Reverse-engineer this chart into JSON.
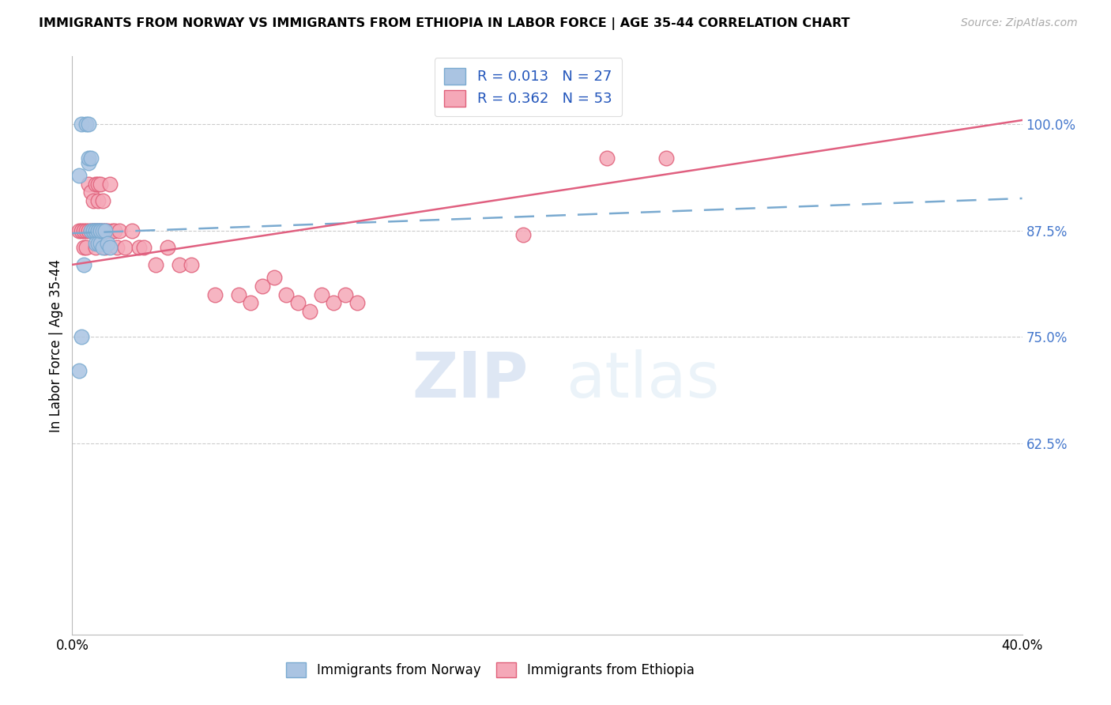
{
  "title": "IMMIGRANTS FROM NORWAY VS IMMIGRANTS FROM ETHIOPIA IN LABOR FORCE | AGE 35-44 CORRELATION CHART",
  "source": "Source: ZipAtlas.com",
  "ylabel": "In Labor Force | Age 35-44",
  "xlim": [
    0.0,
    0.4
  ],
  "ylim": [
    0.4,
    1.08
  ],
  "norway_color": "#aac4e2",
  "norway_edge_color": "#7aaad0",
  "ethiopia_color": "#f5a8b8",
  "ethiopia_edge_color": "#e0607a",
  "norway_R": "0.013",
  "norway_N": "27",
  "ethiopia_R": "0.362",
  "ethiopia_N": "53",
  "norway_line_color": "#7aaad0",
  "ethiopia_line_color": "#e06080",
  "watermark_zip": "ZIP",
  "watermark_atlas": "atlas",
  "norway_trend_x0": 0.0,
  "norway_trend_y0": 0.872,
  "norway_trend_x1": 0.4,
  "norway_trend_y1": 0.913,
  "ethiopia_trend_x0": 0.0,
  "ethiopia_trend_y0": 0.835,
  "ethiopia_trend_x1": 0.4,
  "ethiopia_trend_y1": 1.005,
  "norway_scatter_x": [
    0.004,
    0.006,
    0.007,
    0.007,
    0.007,
    0.008,
    0.008,
    0.009,
    0.009,
    0.01,
    0.01,
    0.01,
    0.011,
    0.011,
    0.011,
    0.012,
    0.012,
    0.012,
    0.013,
    0.013,
    0.014,
    0.015,
    0.003,
    0.005,
    0.016,
    0.004,
    0.003
  ],
  "norway_scatter_y": [
    1.0,
    1.0,
    1.0,
    0.955,
    0.96,
    0.96,
    0.875,
    0.875,
    0.875,
    0.875,
    0.875,
    0.86,
    0.875,
    0.875,
    0.86,
    0.875,
    0.86,
    0.875,
    0.875,
    0.855,
    0.875,
    0.86,
    0.94,
    0.835,
    0.855,
    0.75,
    0.71
  ],
  "ethiopia_scatter_x": [
    0.003,
    0.004,
    0.005,
    0.005,
    0.006,
    0.006,
    0.007,
    0.007,
    0.008,
    0.008,
    0.009,
    0.009,
    0.01,
    0.01,
    0.01,
    0.011,
    0.011,
    0.011,
    0.012,
    0.012,
    0.013,
    0.013,
    0.014,
    0.014,
    0.015,
    0.016,
    0.017,
    0.018,
    0.019,
    0.02,
    0.022,
    0.025,
    0.028,
    0.03,
    0.035,
    0.04,
    0.045,
    0.05,
    0.06,
    0.07,
    0.075,
    0.08,
    0.085,
    0.09,
    0.095,
    0.1,
    0.105,
    0.11,
    0.115,
    0.12,
    0.19,
    0.225,
    0.25
  ],
  "ethiopia_scatter_y": [
    0.875,
    0.875,
    0.875,
    0.855,
    0.875,
    0.855,
    0.93,
    0.875,
    0.92,
    0.875,
    0.91,
    0.875,
    0.93,
    0.875,
    0.855,
    0.93,
    0.91,
    0.875,
    0.93,
    0.875,
    0.875,
    0.91,
    0.875,
    0.855,
    0.875,
    0.93,
    0.875,
    0.875,
    0.855,
    0.875,
    0.855,
    0.875,
    0.855,
    0.855,
    0.835,
    0.855,
    0.835,
    0.835,
    0.8,
    0.8,
    0.79,
    0.81,
    0.82,
    0.8,
    0.79,
    0.78,
    0.8,
    0.79,
    0.8,
    0.79,
    0.87,
    0.96,
    0.96
  ],
  "y_tick_positions": [
    0.625,
    0.75,
    0.875,
    1.0
  ],
  "y_tick_labels": [
    "62.5%",
    "75.0%",
    "87.5%",
    "100.0%"
  ],
  "x_tick_positions": [
    0.0,
    0.05,
    0.1,
    0.15,
    0.2,
    0.25,
    0.3,
    0.35,
    0.4
  ],
  "x_tick_labels": [
    "0.0%",
    "",
    "",
    "",
    "",
    "",
    "",
    "",
    "40.0%"
  ]
}
